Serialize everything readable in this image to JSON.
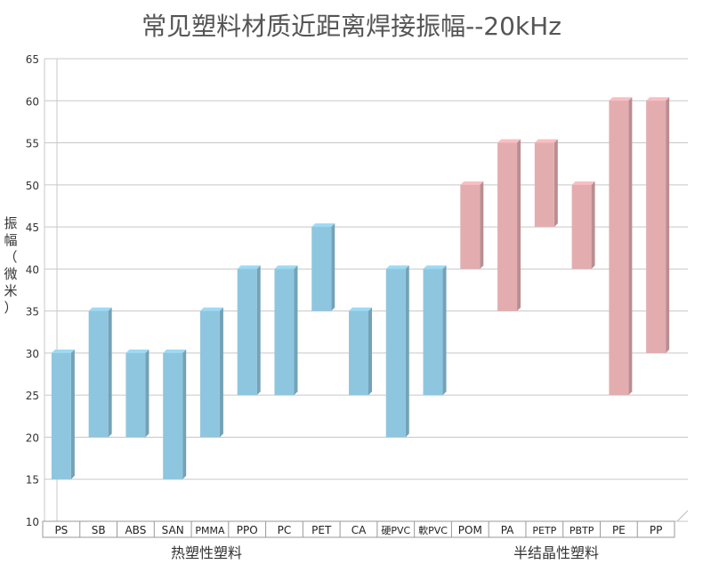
{
  "chart_data": {
    "type": "bar",
    "subtype": "floating-range-3d",
    "title": "常见塑料材质近距离焊接振幅--20kHz",
    "ylabel": "振幅（微米）",
    "ylim": [
      10,
      65
    ],
    "yticks": [
      10,
      15,
      20,
      25,
      30,
      35,
      40,
      45,
      50,
      55,
      60,
      65
    ],
    "grid": true,
    "categories": [
      "PS",
      "SB",
      "ABS",
      "SAN",
      "PMMA",
      "PPO",
      "PC",
      "PET",
      "CA",
      "硬PVC",
      "軟PVC",
      "POM",
      "PA",
      "PETP",
      "PBTP",
      "PE",
      "PP"
    ],
    "ranges": [
      [
        15,
        30
      ],
      [
        20,
        35
      ],
      [
        20,
        30
      ],
      [
        15,
        30
      ],
      [
        20,
        35
      ],
      [
        25,
        40
      ],
      [
        25,
        40
      ],
      [
        35,
        45
      ],
      [
        25,
        35
      ],
      [
        20,
        40
      ],
      [
        25,
        40
      ],
      [
        40,
        50
      ],
      [
        35,
        55
      ],
      [
        45,
        55
      ],
      [
        40,
        50
      ],
      [
        25,
        60
      ],
      [
        30,
        60
      ]
    ],
    "groups": [
      {
        "label": "热塑性塑料",
        "color": "#8ec6df"
      },
      {
        "label": "半结晶性塑料",
        "color": "#e3adb0"
      }
    ],
    "group_of_category": [
      0,
      0,
      0,
      0,
      0,
      0,
      0,
      0,
      0,
      0,
      0,
      1,
      1,
      1,
      1,
      1,
      1
    ]
  }
}
